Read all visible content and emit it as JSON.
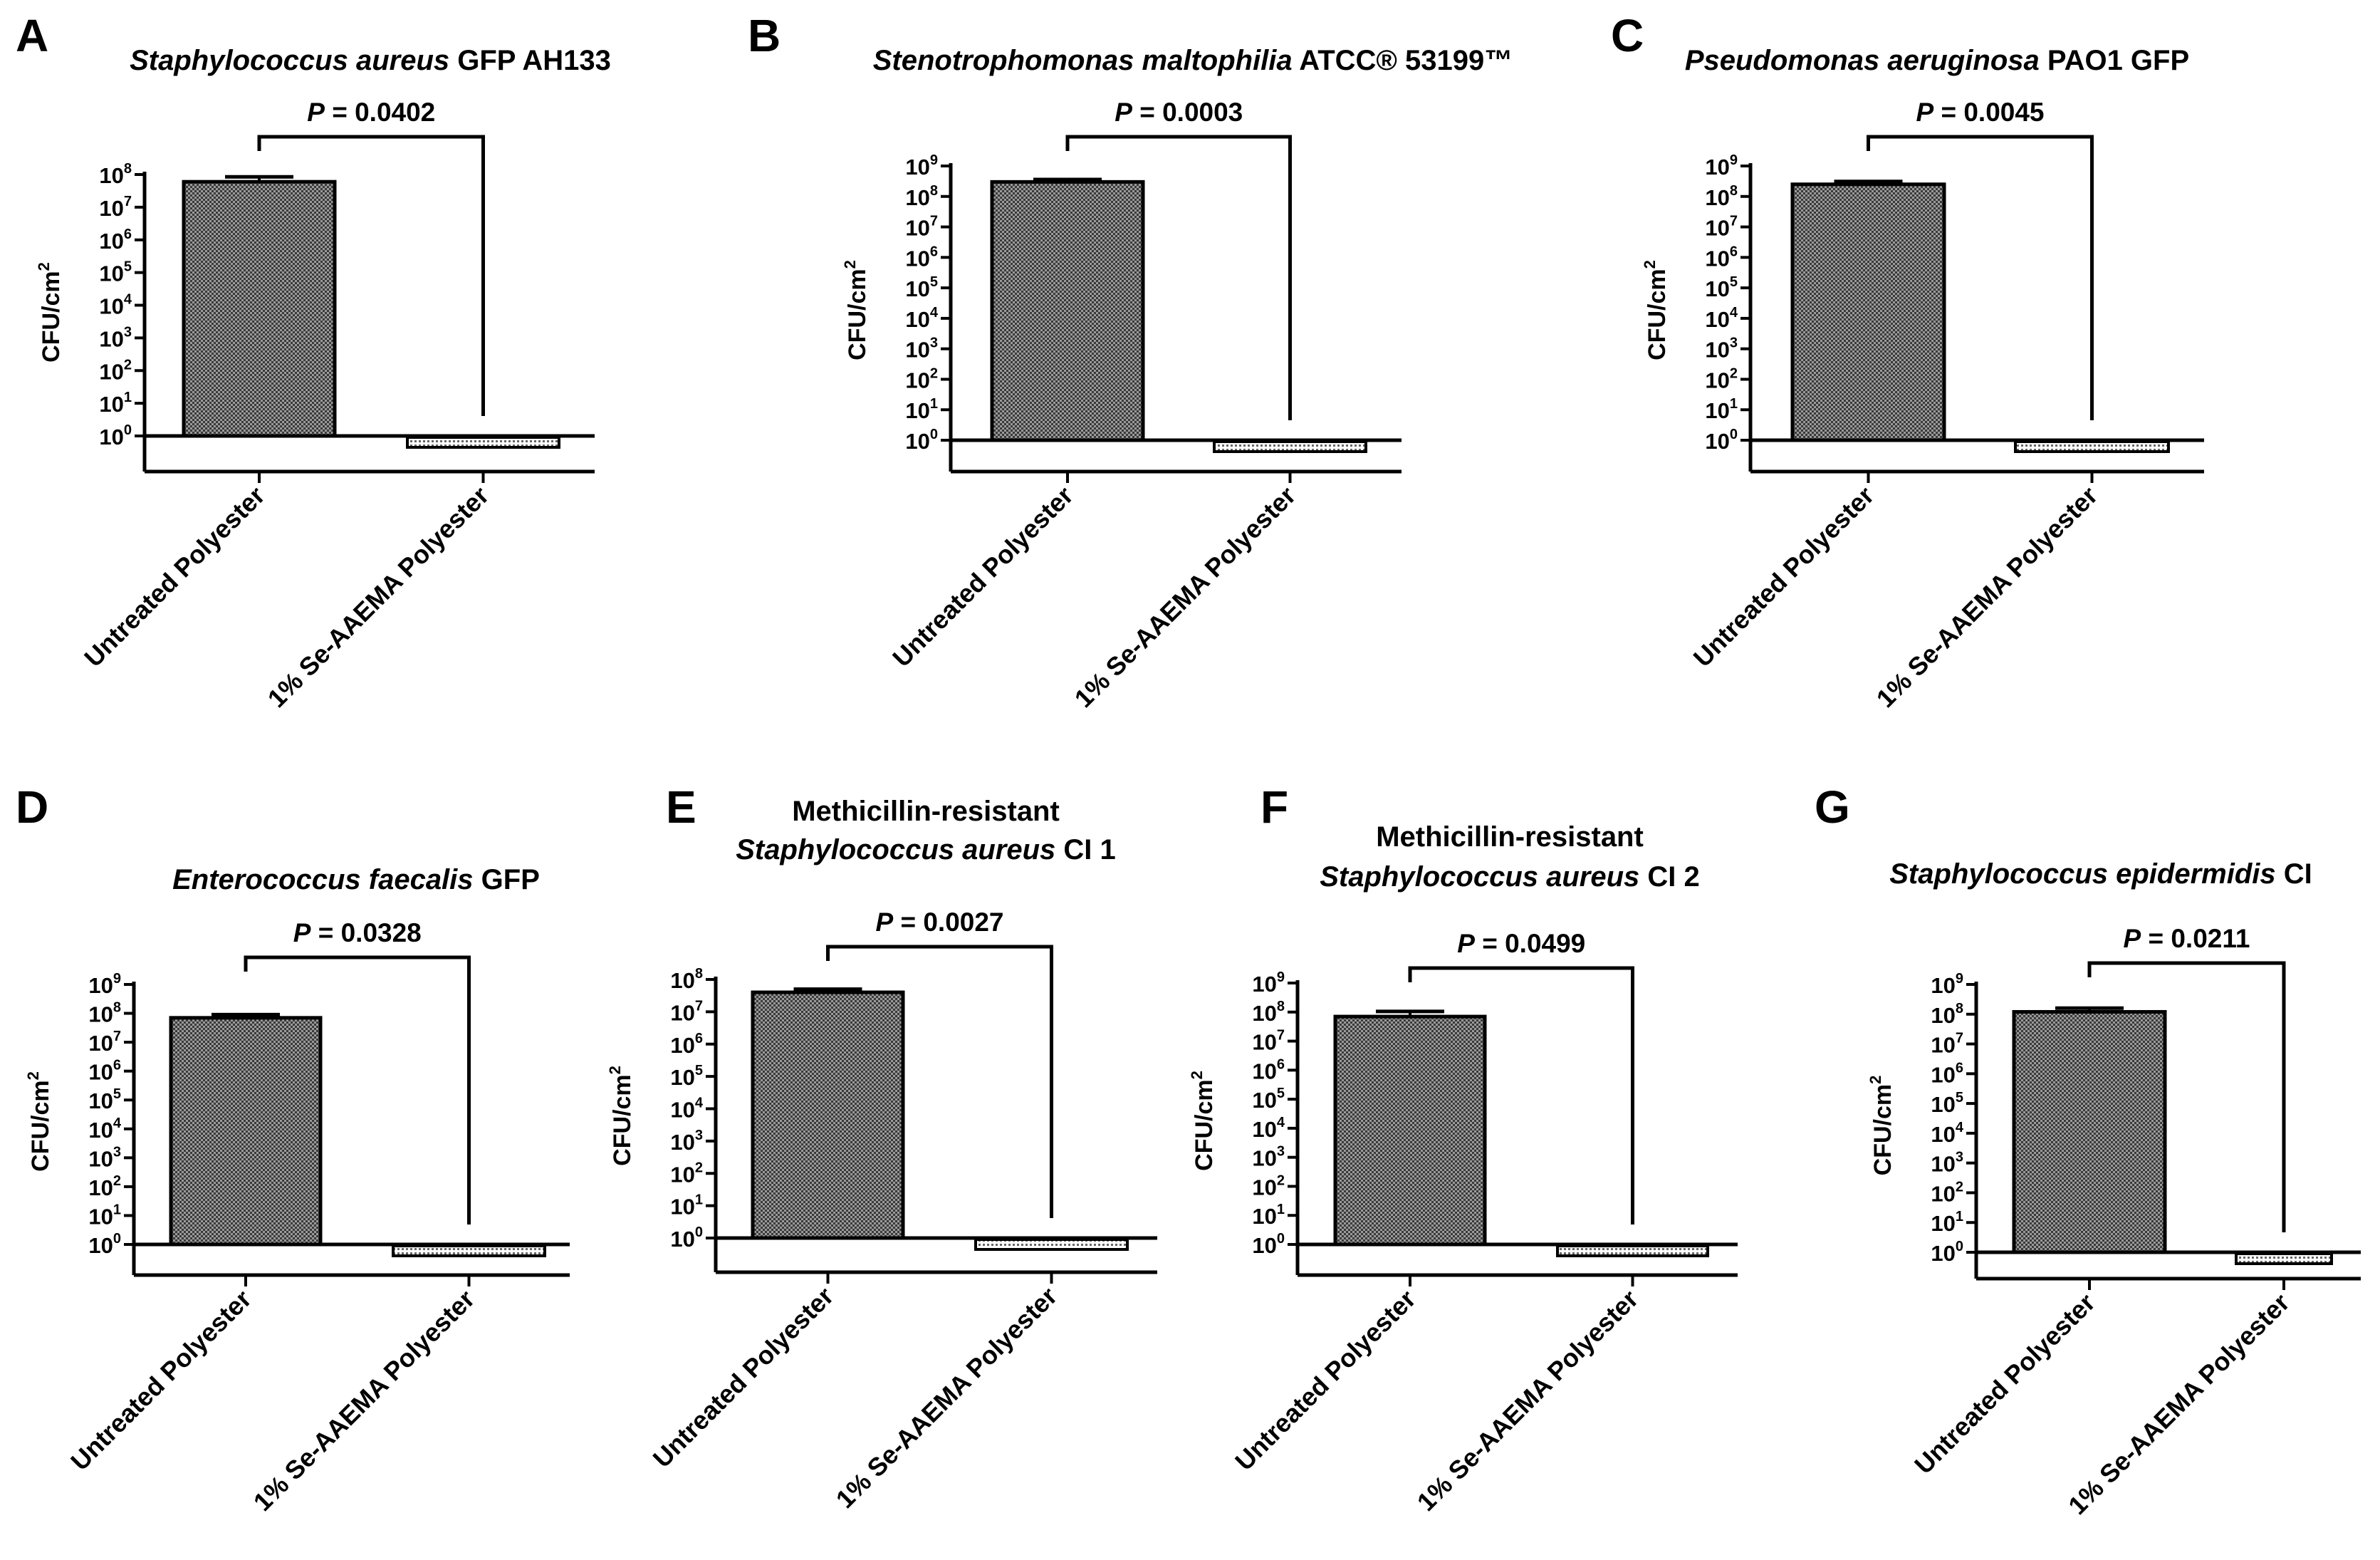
{
  "figure": {
    "panels": [
      {
        "letter": "A",
        "title_lines": [
          [
            {
              "t": "Staphylococcus aureus",
              "i": true
            },
            {
              "t": " GFP AH133",
              "i": false
            }
          ]
        ],
        "p_value": "0.0402"
      },
      {
        "letter": "B",
        "title_lines": [
          [
            {
              "t": "Stenotrophomonas maltophilia",
              "i": true
            },
            {
              "t": " ATCC® 53199™",
              "i": false
            }
          ]
        ],
        "p_value": "0.0003"
      },
      {
        "letter": "C",
        "title_lines": [
          [
            {
              "t": "Pseudomonas aeruginosa",
              "i": true
            },
            {
              "t": " PAO1 GFP",
              "i": false
            }
          ]
        ],
        "p_value": "0.0045"
      },
      {
        "letter": "D",
        "title_lines": [
          [
            {
              "t": "Enterococcus faecalis",
              "i": true
            },
            {
              "t": " GFP",
              "i": false
            }
          ]
        ],
        "p_value": "0.0328"
      },
      {
        "letter": "E",
        "title_lines": [
          [
            {
              "t": "Methicillin-resistant",
              "i": false
            }
          ],
          [
            {
              "t": "Staphylococcus aureus",
              "i": true
            },
            {
              "t": " CI 1",
              "i": false
            }
          ]
        ],
        "p_value": "0.0027"
      },
      {
        "letter": "F",
        "title_lines": [
          [
            {
              "t": "Methicillin-resistant",
              "i": false
            }
          ],
          [
            {
              "t": "Staphylococcus aureus",
              "i": true
            },
            {
              "t": " CI 2",
              "i": false
            }
          ]
        ],
        "p_value": "0.0499"
      },
      {
        "letter": "G",
        "title_lines": [
          [
            {
              "t": "Staphylococcus epidermidis",
              "i": true
            },
            {
              "t": " CI",
              "i": false
            }
          ]
        ],
        "p_value": "0.0211"
      }
    ],
    "p_label": "P",
    "p_separator": " = ",
    "ylabel": "CFU/cm",
    "ylabel_superscript": "2",
    "tick_base": "10",
    "colors": {
      "bar_fill": "#9a9a9a",
      "bar_pattern_dark": "#3a3a3a",
      "axis": "#000000",
      "background": "#ffffff"
    }
  },
  "chart_data": [
    {
      "type": "bar",
      "title": "Staphylococcus aureus GFP AH133",
      "categories": [
        "Untreated Polyester",
        "1% Se-AAEMA Polyester"
      ],
      "values": [
        60000000.0,
        0
      ],
      "errors": [
        25000000.0,
        0
      ],
      "ylabel": "CFU/cm2",
      "yscale": "log",
      "ylim": [
        1,
        100000000.0
      ],
      "yticks_exp": [
        0,
        1,
        2,
        3,
        4,
        5,
        6,
        7,
        8
      ],
      "annotation": "P = 0.0402",
      "grid": false
    },
    {
      "type": "bar",
      "title": "Stenotrophomonas maltophilia ATCC® 53199™",
      "categories": [
        "Untreated Polyester",
        "1% Se-AAEMA Polyester"
      ],
      "values": [
        300000000.0,
        0
      ],
      "errors": [
        60000000.0,
        0
      ],
      "ylabel": "CFU/cm2",
      "yscale": "log",
      "ylim": [
        1,
        1000000000.0
      ],
      "yticks_exp": [
        0,
        1,
        2,
        3,
        4,
        5,
        6,
        7,
        8,
        9
      ],
      "annotation": "P = 0.0003",
      "grid": false
    },
    {
      "type": "bar",
      "title": "Pseudomonas aeruginosa PAO1 GFP",
      "categories": [
        "Untreated Polyester",
        "1% Se-AAEMA Polyester"
      ],
      "values": [
        250000000.0,
        0
      ],
      "errors": [
        60000000.0,
        0
      ],
      "ylabel": "CFU/cm2",
      "yscale": "log",
      "ylim": [
        1,
        1000000000.0
      ],
      "yticks_exp": [
        0,
        1,
        2,
        3,
        4,
        5,
        6,
        7,
        8,
        9
      ],
      "annotation": "P = 0.0045",
      "grid": false
    },
    {
      "type": "bar",
      "title": "Enterococcus faecalis GFP",
      "categories": [
        "Untreated Polyester",
        "1% Se-AAEMA Polyester"
      ],
      "values": [
        70000000.0,
        0
      ],
      "errors": [
        20000000.0,
        0
      ],
      "ylabel": "CFU/cm2",
      "yscale": "log",
      "ylim": [
        1,
        1000000000.0
      ],
      "yticks_exp": [
        0,
        1,
        2,
        3,
        4,
        5,
        6,
        7,
        8,
        9
      ],
      "annotation": "P = 0.0328",
      "grid": false
    },
    {
      "type": "bar",
      "title": "Methicillin-resistant Staphylococcus aureus CI 1",
      "categories": [
        "Untreated Polyester",
        "1% Se-AAEMA Polyester"
      ],
      "values": [
        40000000.0,
        0
      ],
      "errors": [
        10000000.0,
        0
      ],
      "ylabel": "CFU/cm2",
      "yscale": "log",
      "ylim": [
        1,
        100000000.0
      ],
      "yticks_exp": [
        0,
        1,
        2,
        3,
        4,
        5,
        6,
        7,
        8
      ],
      "annotation": "P = 0.0027",
      "grid": false
    },
    {
      "type": "bar",
      "title": "Methicillin-resistant Staphylococcus aureus CI 2",
      "categories": [
        "Untreated Polyester",
        "1% Se-AAEMA Polyester"
      ],
      "values": [
        70000000.0,
        0
      ],
      "errors": [
        35000000.0,
        0
      ],
      "ylabel": "CFU/cm2",
      "yscale": "log",
      "ylim": [
        1,
        1000000000.0
      ],
      "yticks_exp": [
        0,
        1,
        2,
        3,
        4,
        5,
        6,
        7,
        8,
        9
      ],
      "annotation": "P = 0.0499",
      "grid": false
    },
    {
      "type": "bar",
      "title": "Staphylococcus epidermidis CI",
      "categories": [
        "Untreated Polyester",
        "1% Se-AAEMA Polyester"
      ],
      "values": [
        120000000.0,
        0
      ],
      "errors": [
        40000000.0,
        0
      ],
      "ylabel": "CFU/cm2",
      "yscale": "log",
      "ylim": [
        1,
        1000000000.0
      ],
      "yticks_exp": [
        0,
        1,
        2,
        3,
        4,
        5,
        6,
        7,
        8,
        9
      ],
      "annotation": "P = 0.0211",
      "grid": false
    }
  ]
}
